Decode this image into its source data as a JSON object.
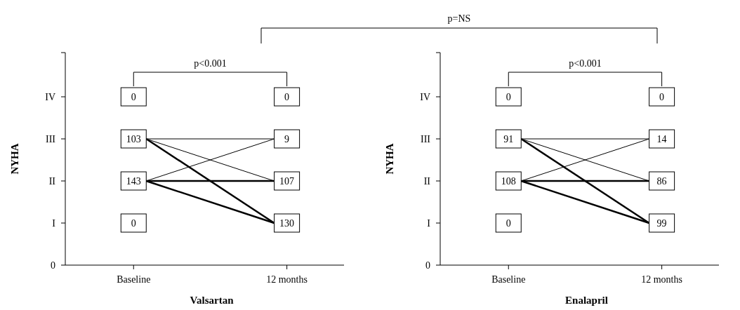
{
  "chart_data": [
    {
      "type": "other",
      "xlabel": "Valsartan",
      "ylabel": "NYHA",
      "categories": [
        "Baseline",
        "12 months"
      ],
      "annotations": [
        "p<0.001",
        "p=NS",
        "IV",
        "III",
        "II",
        "I",
        "0"
      ],
      "data_labels": true,
      "series": [
        {
          "color": "#000000",
          "values": [
            0,
            0
          ]
        },
        {
          "color": "#000000",
          "values": [
            103,
            9
          ]
        },
        {
          "color": "#000000",
          "values": [
            143,
            107
          ]
        },
        {
          "color": "#000000",
          "values": [
            0,
            130
          ]
        }
      ]
    },
    {
      "type": "other",
      "xlabel": "Enalapril",
      "ylabel": "NYHA",
      "categories": [
        "Baseline",
        "12 months"
      ],
      "annotations": [
        "p<0.001",
        "IV",
        "III",
        "II",
        "I",
        "0"
      ],
      "data_labels": true,
      "series": [
        {
          "color": "#000000",
          "values": [
            0,
            0
          ]
        },
        {
          "color": "#000000",
          "values": [
            91,
            14
          ]
        },
        {
          "color": "#000000",
          "values": [
            108,
            86
          ]
        },
        {
          "color": "#000000",
          "values": [
            0,
            99
          ]
        }
      ]
    }
  ]
}
